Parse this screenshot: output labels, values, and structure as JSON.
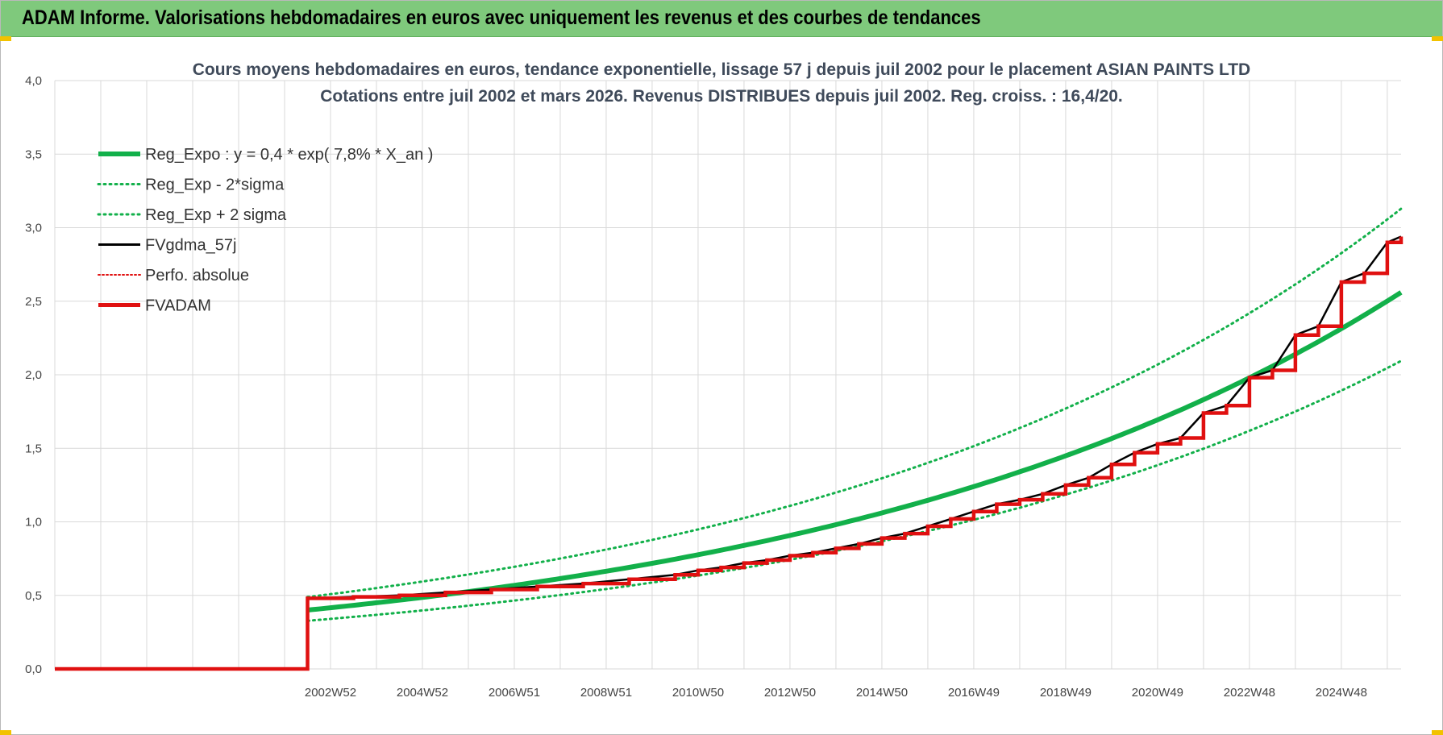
{
  "header": {
    "title": "ADAM Informe. Valorisations hebdomadaires en euros avec uniquement les revenus et des courbes de tendances"
  },
  "colors": {
    "header_bg": "#7fc97c",
    "trend_green": "#12b04a",
    "price_black": "#000000",
    "adam_red": "#e01010",
    "grid": "#d9d9d9"
  },
  "chart_data": {
    "type": "line",
    "title": [
      "Cours moyens hebdomadaires en euros, tendance exponentielle, lissage 57 j depuis juil 2002 pour le placement ASIAN PAINTS LTD",
      "Cotations entre juil 2002 et mars 2026. Revenus DISTRIBUES depuis juil 2002. Reg. croiss. : 16,4/20."
    ],
    "xlabel": "",
    "ylabel": "",
    "ylim": [
      0,
      4
    ],
    "y_ticks": [
      "0,0",
      "0,5",
      "1,0",
      "1,5",
      "2,0",
      "2,5",
      "3,0",
      "3,5",
      "4,0"
    ],
    "x_range_years": [
      1997.0,
      2026.3
    ],
    "x_tick_labels": [
      "2002W52",
      "2004W52",
      "2006W51",
      "2008W51",
      "2010W50",
      "2012W50",
      "2014W50",
      "2016W49",
      "2018W49",
      "2020W49",
      "2022W48",
      "2024W48"
    ],
    "x_tick_years": [
      2003.0,
      2005.0,
      2007.0,
      2009.0,
      2011.0,
      2013.0,
      2015.0,
      2017.0,
      2019.0,
      2021.0,
      2023.0,
      2025.0
    ],
    "grid": true,
    "legend_position": "top-left",
    "regression": {
      "a": 0.4,
      "rate": 0.078,
      "start_year": 2002.5,
      "sigma_factor_low": 0.818,
      "sigma_factor_high": 1.222
    },
    "series": [
      {
        "name": "Reg_Expo : y = 0,4 * exp( 7,8% *  X_an )",
        "style": "solid-thick",
        "color": "#12b04a"
      },
      {
        "name": "Reg_Exp - 2*sigma",
        "style": "dotted",
        "color": "#12b04a"
      },
      {
        "name": "Reg_Exp + 2 sigma",
        "style": "dotted",
        "color": "#12b04a"
      },
      {
        "name": "FVgdma_57j",
        "style": "solid",
        "color": "#000000"
      },
      {
        "name": "Perfo. absolue",
        "style": "dotted",
        "color": "#e01010"
      },
      {
        "name": "FVADAM",
        "style": "solid-thick",
        "color": "#e01010",
        "steps": [
          [
            1997.0,
            0.0
          ],
          [
            2002.5,
            0.0
          ],
          [
            2002.5,
            0.48
          ],
          [
            2003.5,
            0.49
          ],
          [
            2004.5,
            0.5
          ],
          [
            2005.5,
            0.52
          ],
          [
            2006.5,
            0.54
          ],
          [
            2007.5,
            0.56
          ],
          [
            2008.5,
            0.58
          ],
          [
            2009.5,
            0.61
          ],
          [
            2010.5,
            0.64
          ],
          [
            2011.0,
            0.67
          ],
          [
            2011.5,
            0.69
          ],
          [
            2012.0,
            0.72
          ],
          [
            2012.5,
            0.74
          ],
          [
            2013.0,
            0.77
          ],
          [
            2013.5,
            0.79
          ],
          [
            2014.0,
            0.82
          ],
          [
            2014.5,
            0.85
          ],
          [
            2015.0,
            0.89
          ],
          [
            2015.5,
            0.92
          ],
          [
            2016.0,
            0.97
          ],
          [
            2016.5,
            1.02
          ],
          [
            2017.0,
            1.07
          ],
          [
            2017.5,
            1.12
          ],
          [
            2018.0,
            1.15
          ],
          [
            2018.5,
            1.19
          ],
          [
            2019.0,
            1.25
          ],
          [
            2019.5,
            1.3
          ],
          [
            2020.0,
            1.39
          ],
          [
            2020.5,
            1.47
          ],
          [
            2021.0,
            1.53
          ],
          [
            2021.5,
            1.57
          ],
          [
            2022.0,
            1.74
          ],
          [
            2022.5,
            1.79
          ],
          [
            2023.0,
            1.98
          ],
          [
            2023.5,
            2.03
          ],
          [
            2024.0,
            2.27
          ],
          [
            2024.5,
            2.33
          ],
          [
            2025.0,
            2.63
          ],
          [
            2025.5,
            2.69
          ],
          [
            2026.0,
            2.9
          ],
          [
            2026.3,
            2.94
          ]
        ]
      }
    ]
  }
}
